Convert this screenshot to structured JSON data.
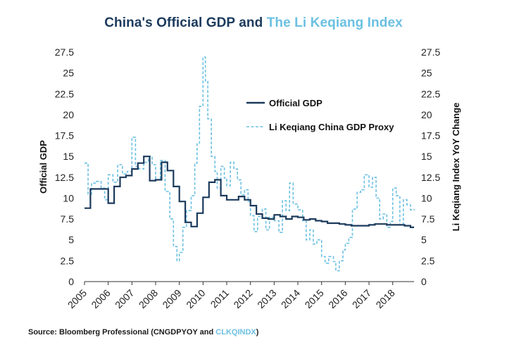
{
  "title": {
    "part1": "China's Official GDP and ",
    "part2": "The Li Keqiang Index"
  },
  "source": {
    "prefix": "Source: Bloomberg Professional (CNGDPYOY and ",
    "code": "CLKQINDX",
    "suffix": ")"
  },
  "colors": {
    "official": "#1b3a5c",
    "proxy": "#6cc0e2",
    "axis": "#333333"
  },
  "chart_data": {
    "type": "line",
    "xlabel": "",
    "ylabel_left": "Official GDP",
    "ylabel_right": "Li Keqiang Index YoY Change",
    "xlim": [
      2005,
      2018.9
    ],
    "ylim": [
      0,
      27.5
    ],
    "x_ticks": [
      "2005",
      "2006",
      "2007",
      "2008",
      "2009",
      "2010",
      "2011",
      "2012",
      "2013",
      "2014",
      "2015",
      "2016",
      "2017",
      "2018"
    ],
    "y_ticks": [
      "0",
      "2.5",
      "5",
      "7.5",
      "10",
      "12.5",
      "15",
      "17.5",
      "20",
      "22.5",
      "25",
      "27.5"
    ],
    "grid": false,
    "legend_position": "upper-right",
    "series": [
      {
        "name": "Official GDP",
        "style": "solid",
        "x": [
          2005.0,
          2005.25,
          2005.75,
          2006.0,
          2006.25,
          2006.5,
          2006.75,
          2007.0,
          2007.25,
          2007.5,
          2007.75,
          2008.0,
          2008.25,
          2008.5,
          2008.75,
          2009.0,
          2009.25,
          2009.5,
          2009.75,
          2010.0,
          2010.25,
          2010.5,
          2010.75,
          2011.0,
          2011.25,
          2011.5,
          2011.75,
          2012.0,
          2012.25,
          2012.5,
          2012.75,
          2013.0,
          2013.25,
          2013.5,
          2013.75,
          2014.0,
          2014.25,
          2014.5,
          2014.75,
          2015.0,
          2015.25,
          2015.5,
          2015.75,
          2016.0,
          2016.25,
          2016.5,
          2016.75,
          2017.0,
          2017.25,
          2017.5,
          2017.75,
          2018.0,
          2018.25,
          2018.5,
          2018.75,
          2018.9
        ],
        "values": [
          8.8,
          11.1,
          11.1,
          9.4,
          11.4,
          12.5,
          12.7,
          13.5,
          14.2,
          15.0,
          12.1,
          12.2,
          14.3,
          13.3,
          11.4,
          9.6,
          7.1,
          6.6,
          8.2,
          10.1,
          11.9,
          12.2,
          10.3,
          9.8,
          9.8,
          10.2,
          9.8,
          9.1,
          8.1,
          7.6,
          7.5,
          8.0,
          7.8,
          7.5,
          7.8,
          7.7,
          7.4,
          7.5,
          7.3,
          7.2,
          7.0,
          7.0,
          6.9,
          6.8,
          6.7,
          6.7,
          6.7,
          6.8,
          6.9,
          6.9,
          6.8,
          6.8,
          6.8,
          6.7,
          6.5,
          6.5
        ]
      },
      {
        "name": "Li Keqiang China GDP Proxy",
        "style": "dashed",
        "x": [
          2005.0,
          2005.15,
          2005.3,
          2005.5,
          2005.7,
          2005.85,
          2006.0,
          2006.2,
          2006.4,
          2006.6,
          2006.8,
          2007.0,
          2007.15,
          2007.3,
          2007.5,
          2007.7,
          2007.85,
          2008.0,
          2008.2,
          2008.4,
          2008.6,
          2008.75,
          2008.9,
          2009.0,
          2009.15,
          2009.3,
          2009.5,
          2009.65,
          2009.75,
          2009.85,
          2010.0,
          2010.1,
          2010.2,
          2010.35,
          2010.5,
          2010.6,
          2010.75,
          2010.9,
          2011.0,
          2011.15,
          2011.3,
          2011.45,
          2011.6,
          2011.75,
          2011.9,
          2012.0,
          2012.15,
          2012.3,
          2012.5,
          2012.65,
          2012.8,
          2013.0,
          2013.2,
          2013.35,
          2013.5,
          2013.65,
          2013.8,
          2014.0,
          2014.2,
          2014.35,
          2014.5,
          2014.65,
          2014.8,
          2015.0,
          2015.15,
          2015.3,
          2015.5,
          2015.6,
          2015.75,
          2015.9,
          2016.0,
          2016.15,
          2016.3,
          2016.5,
          2016.65,
          2016.8,
          2017.0,
          2017.15,
          2017.3,
          2017.45,
          2017.6,
          2017.75,
          2017.9,
          2018.0,
          2018.15,
          2018.3,
          2018.45,
          2018.6,
          2018.75,
          2018.9
        ],
        "values": [
          14.2,
          10.5,
          11.8,
          12.0,
          11.2,
          9.8,
          12.8,
          11.9,
          14.0,
          12.9,
          13.2,
          17.3,
          13.8,
          13.5,
          14.3,
          15.0,
          14.0,
          12.2,
          14.5,
          10.8,
          7.5,
          4.2,
          2.5,
          3.5,
          6.5,
          8.5,
          10.3,
          14.2,
          16.5,
          21.0,
          26.9,
          24.0,
          19.5,
          15.0,
          13.2,
          11.2,
          13.8,
          12.4,
          11.5,
          14.3,
          13.5,
          12.2,
          10.4,
          11.0,
          9.6,
          7.9,
          6.0,
          7.8,
          8.7,
          6.2,
          7.7,
          7.3,
          5.9,
          9.7,
          8.5,
          11.8,
          9.3,
          8.6,
          7.3,
          5.0,
          6.2,
          4.5,
          5.0,
          3.0,
          2.2,
          3.0,
          2.4,
          1.3,
          2.5,
          3.8,
          4.6,
          5.3,
          8.7,
          10.7,
          11.0,
          12.8,
          11.3,
          12.5,
          10.0,
          7.5,
          8.1,
          6.5,
          7.2,
          11.2,
          10.3,
          6.8,
          9.8,
          9.2,
          8.6,
          8.7
        ]
      }
    ]
  }
}
